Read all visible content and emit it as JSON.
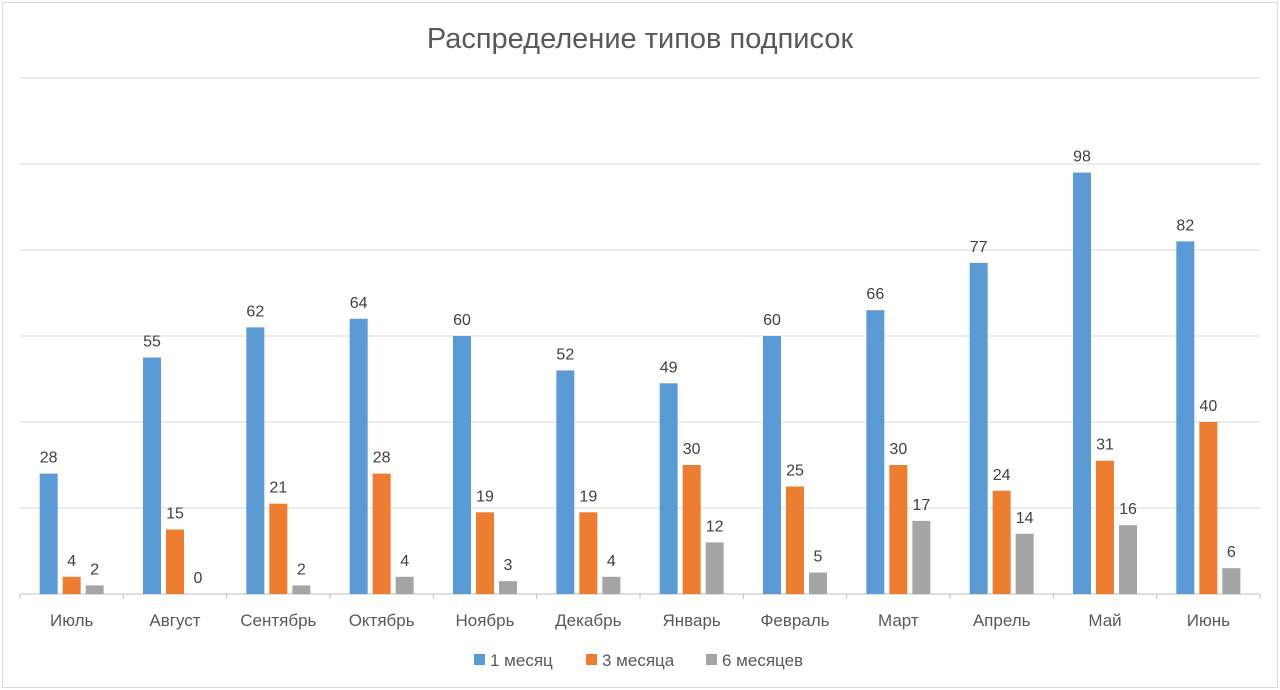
{
  "chart_data": {
    "type": "bar",
    "title": "Распределение типов подписок",
    "xlabel": "",
    "ylabel": "",
    "ylim": [
      0,
      120
    ],
    "grid": true,
    "legend_position": "bottom",
    "categories": [
      "Июль",
      "Август",
      "Сентябрь",
      "Октябрь",
      "Ноябрь",
      "Декабрь",
      "Январь",
      "Февраль",
      "Март",
      "Апрель",
      "Май",
      "Июнь"
    ],
    "series": [
      {
        "name": "1 месяц",
        "color": "#5b9bd5",
        "values": [
          28,
          55,
          62,
          64,
          60,
          52,
          49,
          60,
          66,
          77,
          98,
          82
        ]
      },
      {
        "name": "3 месяца",
        "color": "#ed7d31",
        "values": [
          4,
          15,
          21,
          28,
          19,
          19,
          30,
          25,
          30,
          24,
          31,
          40
        ]
      },
      {
        "name": "6 месяцев",
        "color": "#a5a5a5",
        "values": [
          2,
          0,
          2,
          4,
          3,
          4,
          12,
          5,
          17,
          14,
          16,
          6
        ]
      }
    ]
  }
}
